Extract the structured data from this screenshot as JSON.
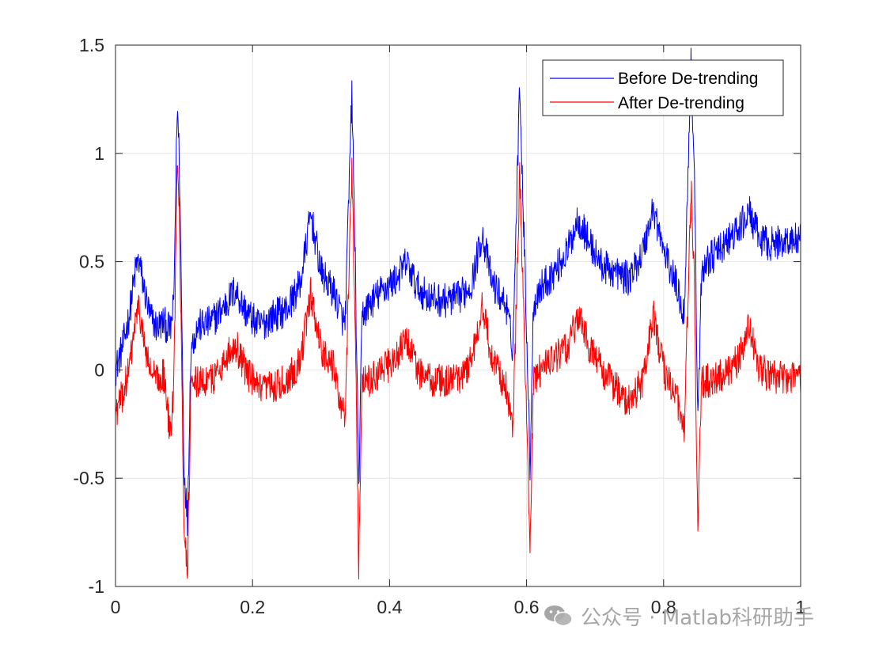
{
  "chart_data": {
    "type": "line",
    "title": "",
    "xlabel": "",
    "ylabel": "",
    "xlim": [
      0,
      1
    ],
    "ylim": [
      -1,
      1.5
    ],
    "x_ticks": [
      "0",
      "0.2",
      "0.4",
      "0.6",
      "0.8",
      "1"
    ],
    "y_ticks": [
      "-1",
      "-0.5",
      "0",
      "0.5",
      "1",
      "1.5"
    ],
    "grid": true,
    "box": true,
    "legend_position": "top-right",
    "series": [
      {
        "name": "Before De-trending",
        "color": "#0000ff",
        "x": [
          0,
          0.01,
          0.02,
          0.03,
          0.035,
          0.04,
          0.05,
          0.06,
          0.07,
          0.08,
          0.085,
          0.09,
          0.093,
          0.097,
          0.1,
          0.105,
          0.11,
          0.12,
          0.14,
          0.16,
          0.175,
          0.19,
          0.21,
          0.23,
          0.25,
          0.27,
          0.285,
          0.3,
          0.32,
          0.335,
          0.345,
          0.35,
          0.355,
          0.36,
          0.37,
          0.39,
          0.41,
          0.425,
          0.44,
          0.46,
          0.48,
          0.5,
          0.52,
          0.535,
          0.55,
          0.57,
          0.58,
          0.59,
          0.6,
          0.605,
          0.61,
          0.62,
          0.64,
          0.66,
          0.675,
          0.69,
          0.71,
          0.73,
          0.75,
          0.77,
          0.785,
          0.8,
          0.82,
          0.83,
          0.84,
          0.845,
          0.85,
          0.855,
          0.86,
          0.87,
          0.89,
          0.91,
          0.925,
          0.94,
          0.96,
          0.98,
          1.0
        ],
        "y": [
          0.0,
          0.1,
          0.25,
          0.48,
          0.5,
          0.4,
          0.25,
          0.2,
          0.22,
          0.18,
          0.3,
          1.22,
          1.0,
          0.2,
          -0.45,
          -0.7,
          0.1,
          0.2,
          0.22,
          0.3,
          0.37,
          0.27,
          0.2,
          0.25,
          0.28,
          0.4,
          0.72,
          0.45,
          0.35,
          0.2,
          1.28,
          0.5,
          -0.55,
          0.25,
          0.3,
          0.37,
          0.42,
          0.5,
          0.38,
          0.33,
          0.32,
          0.33,
          0.4,
          0.63,
          0.4,
          0.3,
          0.1,
          1.33,
          0.2,
          -0.45,
          0.3,
          0.38,
          0.45,
          0.55,
          0.7,
          0.6,
          0.48,
          0.45,
          0.42,
          0.55,
          0.75,
          0.55,
          0.38,
          0.25,
          1.42,
          0.9,
          -0.25,
          0.4,
          0.5,
          0.52,
          0.58,
          0.65,
          0.73,
          0.6,
          0.58,
          0.6,
          0.6
        ]
      },
      {
        "name": "After De-trending",
        "color": "#ff0000",
        "x": [
          0,
          0.01,
          0.02,
          0.03,
          0.035,
          0.04,
          0.05,
          0.06,
          0.07,
          0.08,
          0.085,
          0.09,
          0.093,
          0.097,
          0.1,
          0.105,
          0.11,
          0.12,
          0.14,
          0.16,
          0.175,
          0.19,
          0.21,
          0.23,
          0.25,
          0.27,
          0.285,
          0.3,
          0.32,
          0.335,
          0.345,
          0.35,
          0.355,
          0.36,
          0.37,
          0.39,
          0.41,
          0.425,
          0.44,
          0.46,
          0.48,
          0.5,
          0.52,
          0.535,
          0.55,
          0.57,
          0.58,
          0.59,
          0.6,
          0.605,
          0.61,
          0.62,
          0.64,
          0.66,
          0.675,
          0.69,
          0.71,
          0.73,
          0.75,
          0.77,
          0.785,
          0.8,
          0.82,
          0.83,
          0.84,
          0.845,
          0.85,
          0.855,
          0.86,
          0.87,
          0.89,
          0.91,
          0.925,
          0.94,
          0.96,
          0.98,
          1.0
        ],
        "y": [
          -0.2,
          -0.12,
          0.0,
          0.25,
          0.28,
          0.15,
          0.0,
          -0.05,
          -0.02,
          -0.3,
          -0.1,
          1.0,
          0.8,
          -0.1,
          -0.7,
          -0.95,
          -0.1,
          -0.05,
          -0.05,
          0.05,
          0.12,
          0.0,
          -0.1,
          -0.08,
          -0.05,
          0.05,
          0.35,
          0.1,
          0.0,
          -0.25,
          0.95,
          0.2,
          -0.9,
          -0.05,
          -0.05,
          0.0,
          0.05,
          0.15,
          0.0,
          -0.05,
          -0.05,
          -0.05,
          0.05,
          0.3,
          0.05,
          -0.08,
          -0.3,
          0.9,
          -0.2,
          -0.9,
          -0.05,
          0.0,
          0.05,
          0.1,
          0.25,
          0.12,
          0.0,
          -0.08,
          -0.15,
          -0.05,
          0.25,
          0.0,
          -0.15,
          -0.3,
          0.85,
          0.4,
          -0.8,
          -0.05,
          -0.05,
          -0.05,
          -0.02,
          0.05,
          0.2,
          0.0,
          -0.03,
          -0.03,
          -0.05
        ]
      }
    ]
  },
  "watermark": {
    "text": "公众号 · Matlab科研助手",
    "icon": "wechat-icon"
  }
}
